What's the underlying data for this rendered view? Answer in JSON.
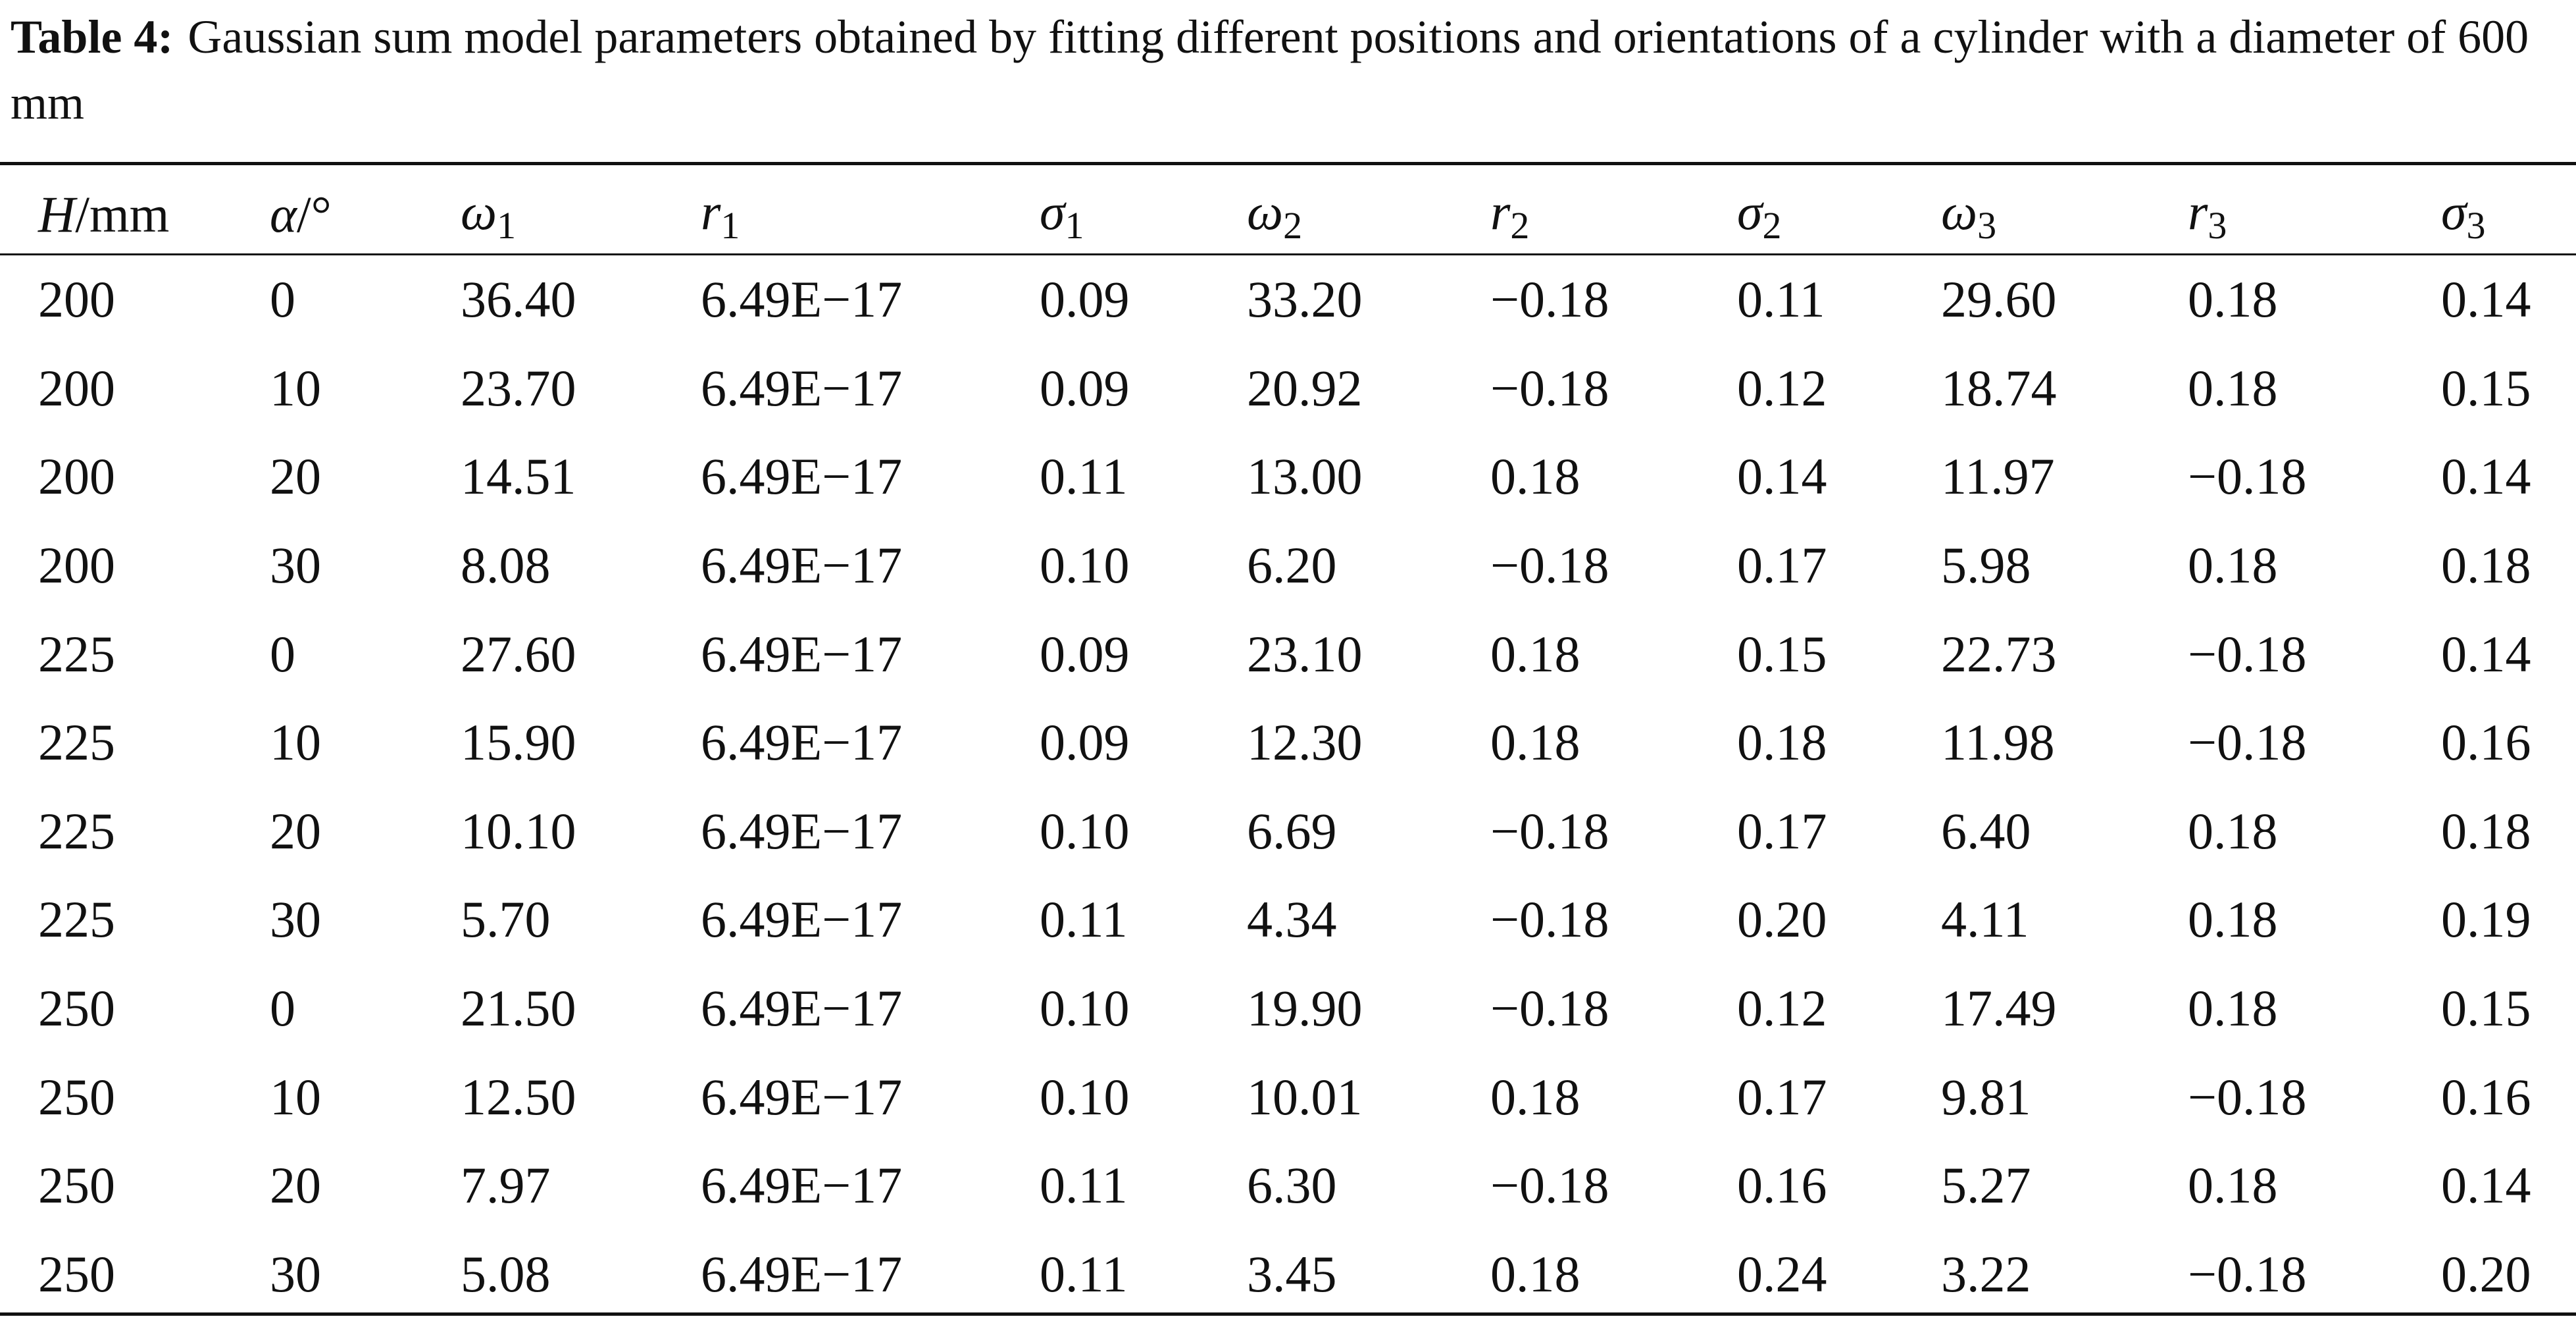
{
  "caption": {
    "label": "Table 4:",
    "text": "Gaussian sum model parameters obtained by fitting different positions and orientations of a cylinder with a diameter of 600 mm"
  },
  "table": {
    "headers": [
      {
        "sym": "H",
        "unit": "/mm",
        "sub": ""
      },
      {
        "sym": "α",
        "unit": "/°",
        "sub": ""
      },
      {
        "sym": "ω",
        "unit": "",
        "sub": "1"
      },
      {
        "sym": "r",
        "unit": "",
        "sub": "1"
      },
      {
        "sym": "σ",
        "unit": "",
        "sub": "1"
      },
      {
        "sym": "ω",
        "unit": "",
        "sub": "2"
      },
      {
        "sym": "r",
        "unit": "",
        "sub": "2"
      },
      {
        "sym": "σ",
        "unit": "",
        "sub": "2"
      },
      {
        "sym": "ω",
        "unit": "",
        "sub": "3"
      },
      {
        "sym": "r",
        "unit": "",
        "sub": "3"
      },
      {
        "sym": "σ",
        "unit": "",
        "sub": "3"
      }
    ],
    "rows": [
      [
        "200",
        "0",
        "36.40",
        "6.49E−17",
        "0.09",
        "33.20",
        "−0.18",
        "0.11",
        "29.60",
        "0.18",
        "0.14"
      ],
      [
        "200",
        "10",
        "23.70",
        "6.49E−17",
        "0.09",
        "20.92",
        "−0.18",
        "0.12",
        "18.74",
        "0.18",
        "0.15"
      ],
      [
        "200",
        "20",
        "14.51",
        "6.49E−17",
        "0.11",
        "13.00",
        "0.18",
        "0.14",
        "11.97",
        "−0.18",
        "0.14"
      ],
      [
        "200",
        "30",
        "8.08",
        "6.49E−17",
        "0.10",
        "6.20",
        "−0.18",
        "0.17",
        "5.98",
        "0.18",
        "0.18"
      ],
      [
        "225",
        "0",
        "27.60",
        "6.49E−17",
        "0.09",
        "23.10",
        "0.18",
        "0.15",
        "22.73",
        "−0.18",
        "0.14"
      ],
      [
        "225",
        "10",
        "15.90",
        "6.49E−17",
        "0.09",
        "12.30",
        "0.18",
        "0.18",
        "11.98",
        "−0.18",
        "0.16"
      ],
      [
        "225",
        "20",
        "10.10",
        "6.49E−17",
        "0.10",
        "6.69",
        "−0.18",
        "0.17",
        "6.40",
        "0.18",
        "0.18"
      ],
      [
        "225",
        "30",
        "5.70",
        "6.49E−17",
        "0.11",
        "4.34",
        "−0.18",
        "0.20",
        "4.11",
        "0.18",
        "0.19"
      ],
      [
        "250",
        "0",
        "21.50",
        "6.49E−17",
        "0.10",
        "19.90",
        "−0.18",
        "0.12",
        "17.49",
        "0.18",
        "0.15"
      ],
      [
        "250",
        "10",
        "12.50",
        "6.49E−17",
        "0.10",
        "10.01",
        "0.18",
        "0.17",
        "9.81",
        "−0.18",
        "0.16"
      ],
      [
        "250",
        "20",
        "7.97",
        "6.49E−17",
        "0.11",
        "6.30",
        "−0.18",
        "0.16",
        "5.27",
        "0.18",
        "0.14"
      ],
      [
        "250",
        "30",
        "5.08",
        "6.49E−17",
        "0.11",
        "3.45",
        "0.18",
        "0.24",
        "3.22",
        "−0.18",
        "0.20"
      ]
    ]
  }
}
